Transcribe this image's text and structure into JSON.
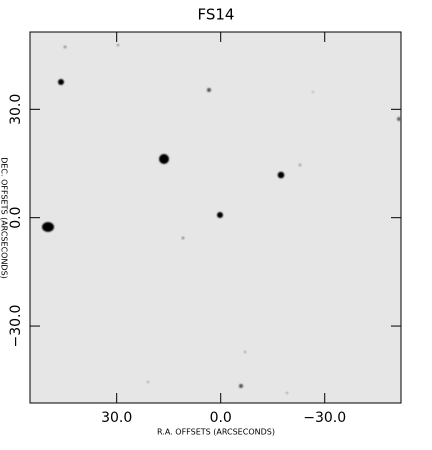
{
  "chart_data": {
    "type": "image",
    "title": "FS14",
    "x_label": "R.A. OFFSETS (ARCSECONDS)",
    "y_label": "DEC. OFFSETS (ARCSECONDS)",
    "xlim": [
      55,
      -52
    ],
    "ylim": [
      -51.3,
      51.4
    ],
    "xticks": [
      {
        "value": 30,
        "label": "30.0"
      },
      {
        "value": 0,
        "label": "0.0"
      },
      {
        "value": -30,
        "label": "−30.0"
      }
    ],
    "yticks": [
      {
        "value": 30,
        "label": "30.0"
      },
      {
        "value": 0,
        "label": "0.0"
      },
      {
        "value": -30,
        "label": "−30.0"
      }
    ]
  }
}
